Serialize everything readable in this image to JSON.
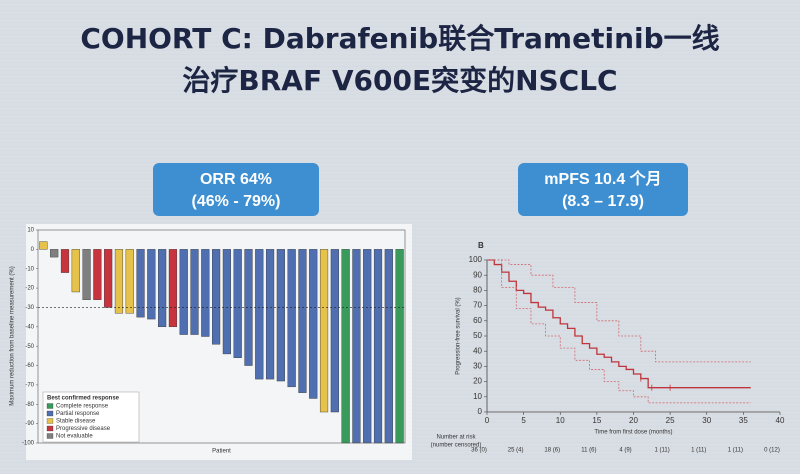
{
  "slide": {
    "title": [
      "COHORT C: Dabrafenib联合Trametinib一线",
      "治疗BRAF V600E突变的NSCLC"
    ]
  },
  "highlights": [
    {
      "lines": [
        "ORR 64%",
        "(46% - 79%)"
      ]
    },
    {
      "lines": [
        "mPFS 10.4 个月",
        "(8.3 – 17.9)"
      ]
    }
  ],
  "chart_data": [
    {
      "type": "bar",
      "ylabel": "Maximum reduction from baseline measurement (%)",
      "xlabel": "Patient",
      "ylim": [
        -100,
        10
      ],
      "yticks": [
        -100,
        -90,
        -80,
        -70,
        -60,
        -50,
        -40,
        -30,
        -20,
        -10,
        0,
        10
      ],
      "reference_line": -30,
      "values": [
        4,
        -4,
        -12,
        -22,
        -26,
        -26,
        -30,
        -33,
        -33,
        -35,
        -36,
        -40,
        -40,
        -44,
        -44,
        -45,
        -49,
        -54,
        -56,
        -60,
        -67,
        -67,
        -68,
        -71,
        -74,
        -77,
        -84,
        -84,
        -100,
        -100,
        -100,
        -100,
        -100,
        -100
      ],
      "bar_colors": [
        "#e6c24a",
        "#7f7f7f",
        "#c8343e",
        "#e6c24a",
        "#7f7f7f",
        "#c8343e",
        "#c8343e",
        "#e6c24a",
        "#e6c24a",
        "#4f6fb0",
        "#4f6fb0",
        "#4f6fb0",
        "#c8343e",
        "#4f6fb0",
        "#4f6fb0",
        "#4f6fb0",
        "#4f6fb0",
        "#4f6fb0",
        "#4f6fb0",
        "#4f6fb0",
        "#4f6fb0",
        "#4f6fb0",
        "#4f6fb0",
        "#4f6fb0",
        "#4f6fb0",
        "#4f6fb0",
        "#e6c24a",
        "#4f6fb0",
        "#3a9a5b",
        "#4f6fb0",
        "#4f6fb0",
        "#4f6fb0",
        "#4f6fb0",
        "#3a9a5b"
      ],
      "legend": {
        "title": "Best confirmed response",
        "items": [
          {
            "name": "Complete response",
            "color": "#3a9a5b"
          },
          {
            "name": "Partial response",
            "color": "#4f6fb0"
          },
          {
            "name": "Stable disease",
            "color": "#e6c24a"
          },
          {
            "name": "Progressive disease",
            "color": "#c8343e"
          },
          {
            "name": "Not evaluable",
            "color": "#7f7f7f"
          }
        ]
      }
    },
    {
      "type": "line",
      "panel_label": "B",
      "ylabel": "Progression-free survival (%)",
      "xlabel": "Time from first dose (months)",
      "xlim": [
        0,
        40
      ],
      "xticks": [
        0,
        5,
        10,
        15,
        20,
        25,
        30,
        35,
        40
      ],
      "ylim": [
        0,
        100
      ],
      "yticks": [
        0,
        10,
        20,
        30,
        40,
        50,
        60,
        70,
        80,
        90,
        100
      ],
      "series": [
        {
          "color": "#c0343c",
          "style": "solid",
          "x": [
            0,
            1,
            2,
            3,
            4,
            5,
            6,
            7,
            8,
            9,
            10,
            11,
            12,
            13,
            14,
            15,
            16,
            17,
            18,
            19,
            20,
            21,
            22,
            36
          ],
          "values": [
            100,
            97,
            92,
            86,
            80,
            78,
            72,
            69,
            67,
            62,
            58,
            55,
            50,
            45,
            42,
            38,
            36,
            33,
            30,
            28,
            25,
            22,
            16,
            16
          ]
        },
        {
          "color": "#d06a70",
          "style": "dashed",
          "x": [
            0,
            3,
            6,
            9,
            12,
            15,
            18,
            21,
            23,
            36
          ],
          "values": [
            100,
            97,
            90,
            82,
            72,
            60,
            50,
            40,
            33,
            33
          ]
        },
        {
          "color": "#d06a70",
          "style": "dashed",
          "x": [
            0,
            2,
            4,
            6,
            8,
            10,
            12,
            14,
            16,
            18,
            20,
            22,
            36
          ],
          "values": [
            100,
            82,
            68,
            58,
            50,
            42,
            34,
            28,
            20,
            14,
            10,
            6,
            6
          ]
        }
      ],
      "censored": {
        "x": [
          21,
          22.5,
          25
        ],
        "y": [
          22,
          16,
          16
        ]
      },
      "risk_table": {
        "label": [
          "Number at risk",
          "(number censored)"
        ],
        "values": [
          "36 (0)",
          "25 (4)",
          "18 (6)",
          "11 (6)",
          "4 (9)",
          "1 (11)",
          "1 (11)",
          "1 (11)",
          "0 (12)"
        ]
      }
    }
  ]
}
